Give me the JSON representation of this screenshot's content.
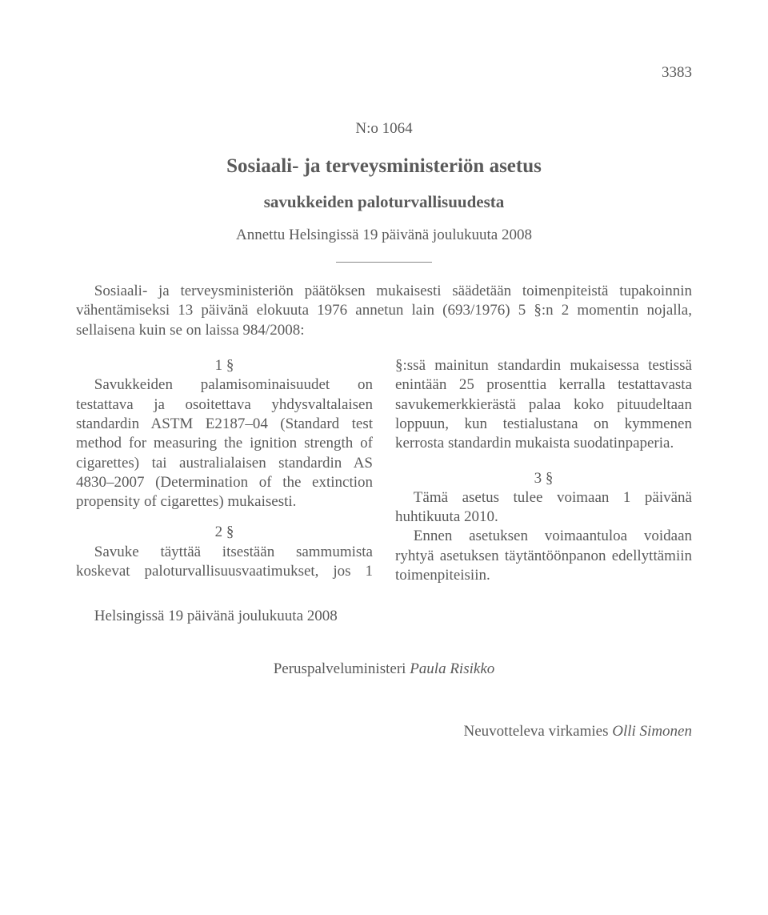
{
  "page_number": "3383",
  "doc_number": "N:o 1064",
  "title": "Sosiaali- ja terveysministeriön asetus",
  "subtitle": "savukkeiden paloturvallisuudesta",
  "issued_date": "Annettu Helsingissä 19 päivänä joulukuuta 2008",
  "preamble": "Sosiaali- ja terveysministeriön päätöksen mukaisesti säädetään toimenpiteistä tupakoinnin vähentämiseksi 13 päivänä elokuuta 1976 annetun lain (693/1976) 5 §:n 2 momentin nojalla, sellaisena kuin se on laissa 984/2008:",
  "sections": {
    "s1_num": "1 §",
    "s1_body": "Savukkeiden palamisominaisuudet on testattava ja osoitettava yhdysvaltalaisen standardin ASTM E2187–04 (Standard test method for measuring the ignition strength of cigarettes) tai australialaisen standardin AS 4830–2007 (Determination of the extinction propensity of cigarettes) mukaisesti.",
    "s2_num": "2 §",
    "s2_body_a": "Savuke täyttää itsestään sammumista koskevat paloturvallisuusvaatimukset, jos 1 §:ssä ",
    "s2_body_b": "mainitun standardin mukaisessa testissä enintään 25 prosenttia kerralla testattavasta savukemerkkierästä palaa koko pituudeltaan loppuun, kun testialustana on kymmenen kerrosta standardin mukaista suodatinpaperia.",
    "s3_num": "3 §",
    "s3_body1": "Tämä asetus tulee voimaan 1 päivänä huhtikuuta 2010.",
    "s3_body2": "Ennen asetuksen voimaantuloa voidaan ryhtyä asetuksen täytäntöönpanon edellyttämiin toimenpiteisiin."
  },
  "issued_place": "Helsingissä 19 päivänä joulukuuta 2008",
  "signature_title": "Peruspalveluministeri ",
  "signature_name": "Paula Risikko",
  "countersign_title": "Neuvotteleva virkamies  ",
  "countersign_name": "Olli Simonen"
}
